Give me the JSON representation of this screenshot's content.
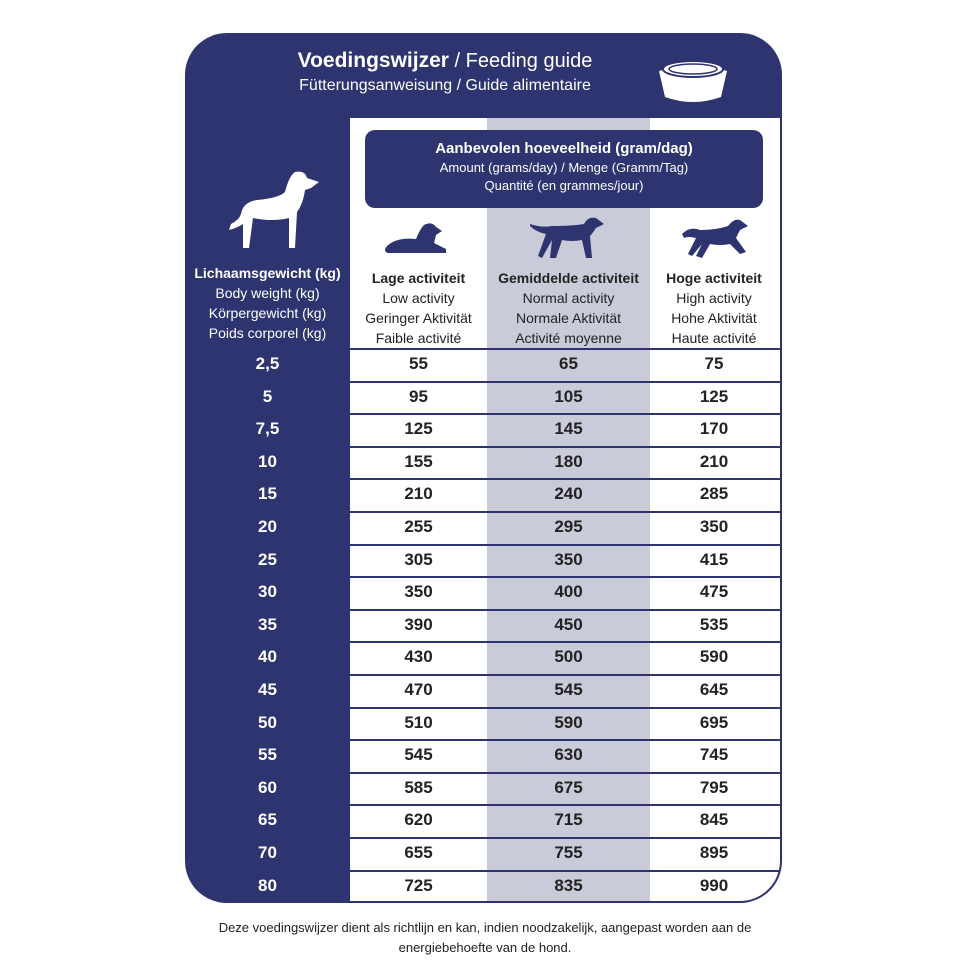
{
  "title": {
    "main_bold": "Voedingswijzer",
    "main_rest": " / Feeding guide",
    "sub": "Fütterungsanweisung / Guide alimentaire"
  },
  "amount_header": {
    "nl": "Aanbevolen hoeveelheid (gram/dag)",
    "en_de": "Amount (grams/day) / Menge (Gramm/Tag)",
    "fr": "Quantité (en grammes/jour)"
  },
  "weight_header": {
    "nl": "Lichaamsgewicht (kg)",
    "en": "Body weight (kg)",
    "de": "Körpergewicht (kg)",
    "fr": "Poids corporel (kg)"
  },
  "columns": [
    {
      "nl": "Lage activiteit",
      "en": "Low activity",
      "de": "Geringer Aktivität",
      "fr": "Faible activité"
    },
    {
      "nl": "Gemiddelde activiteit",
      "en": "Normal activity",
      "de": "Normale Aktivität",
      "fr": "Activité moyenne"
    },
    {
      "nl": "Hoge activiteit",
      "en": "High activity",
      "de": "Hohe Aktivität",
      "fr": "Haute activité"
    }
  ],
  "rows": [
    [
      "2,5",
      "55",
      "65",
      "75"
    ],
    [
      "5",
      "95",
      "105",
      "125"
    ],
    [
      "7,5",
      "125",
      "145",
      "170"
    ],
    [
      "10",
      "155",
      "180",
      "210"
    ],
    [
      "15",
      "210",
      "240",
      "285"
    ],
    [
      "20",
      "255",
      "295",
      "350"
    ],
    [
      "25",
      "305",
      "350",
      "415"
    ],
    [
      "30",
      "350",
      "400",
      "475"
    ],
    [
      "35",
      "390",
      "450",
      "535"
    ],
    [
      "40",
      "430",
      "500",
      "590"
    ],
    [
      "45",
      "470",
      "545",
      "645"
    ],
    [
      "50",
      "510",
      "590",
      "695"
    ],
    [
      "55",
      "545",
      "630",
      "745"
    ],
    [
      "60",
      "585",
      "675",
      "795"
    ],
    [
      "65",
      "620",
      "715",
      "845"
    ],
    [
      "70",
      "655",
      "755",
      "895"
    ],
    [
      "80",
      "725",
      "835",
      "990"
    ]
  ],
  "note": "Deze voedingswijzer dient als richtlijn en kan, indien noodzakelijk, aangepast worden aan de energiebehoefte van de hond.",
  "colors": {
    "navy": "#2e3470",
    "highlight": "#c9cbd8"
  },
  "icons": [
    "bowl-icon",
    "standing-dog-icon",
    "lying-dog-icon",
    "walking-dog-icon",
    "running-dog-icon"
  ]
}
